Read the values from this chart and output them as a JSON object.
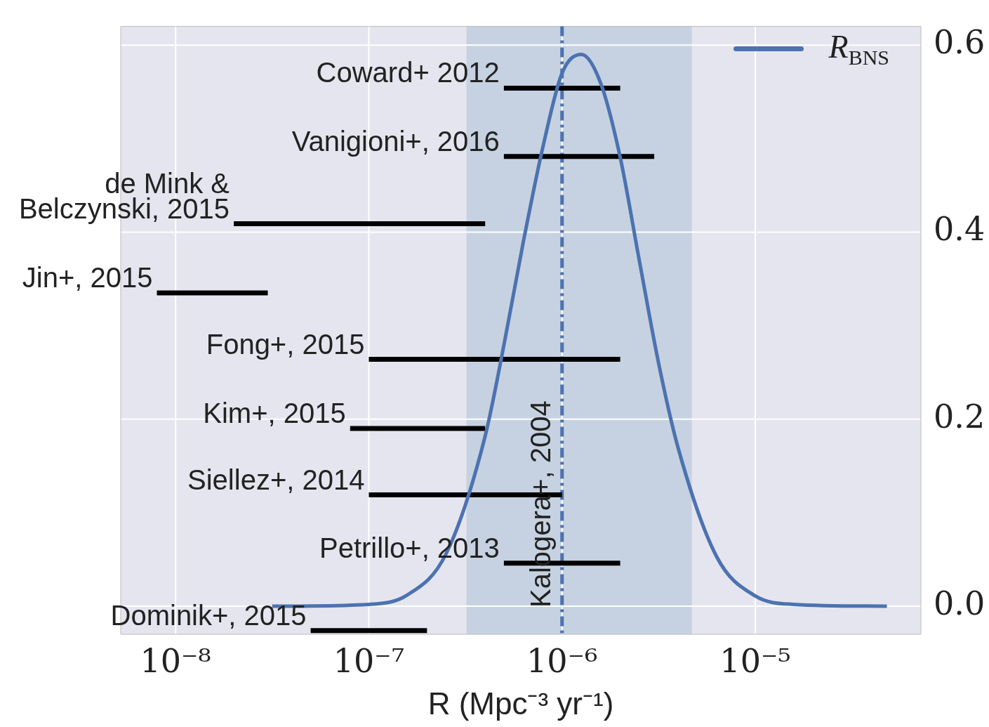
{
  "chart_data": {
    "type": "line",
    "xlabel": "R (Mpc⁻³ yr⁻¹)",
    "log": "x",
    "xlim": [
      5.2e-09,
      7.2e-05
    ],
    "xticks": [
      {
        "value": 1e-08,
        "label": "10⁻⁸"
      },
      {
        "value": 1e-07,
        "label": "10⁻⁷"
      },
      {
        "value": 1e-06,
        "label": "10⁻⁶"
      },
      {
        "value": 1e-05,
        "label": "10⁻⁵"
      }
    ],
    "ylim": [
      -0.03,
      0.62
    ],
    "yticks": [
      {
        "value": 0,
        "label": "0.0"
      },
      {
        "value": 0.2,
        "label": "0.2"
      },
      {
        "value": 0.4,
        "label": "0.4"
      },
      {
        "value": 0.6,
        "label": "0.6"
      }
    ],
    "grid": true,
    "legend": "top right",
    "series": [
      {
        "name": "R$_{BNS}$",
        "color": "#4c72b0",
        "x": [
          3.16e-08,
          1e-07,
          1.58e-07,
          2.51e-07,
          3.98e-07,
          5.01e-07,
          6.31e-07,
          7.94e-07,
          1e-06,
          1.26e-06,
          1.58e-06,
          2e-06,
          2.51e-06,
          3.16e-06,
          3.98e-06,
          6.31e-06,
          1e-05,
          1.58e-05,
          4.8e-05
        ],
        "values": [
          0,
          0.002,
          0.012,
          0.056,
          0.18,
          0.28,
          0.39,
          0.49,
          0.57,
          0.59,
          0.56,
          0.48,
          0.37,
          0.26,
          0.17,
          0.053,
          0.011,
          0.002,
          0
        ]
      },
      {
        "color": "#000000",
        "x": [
          5e-07,
          2e-06
        ],
        "values": [
          0.554,
          0.554
        ]
      },
      {
        "color": "#000000",
        "x": [
          5e-07,
          3e-06
        ],
        "values": [
          0.481,
          0.481
        ]
      },
      {
        "color": "#000000",
        "x": [
          2e-08,
          4e-07
        ],
        "values": [
          0.409,
          0.409
        ]
      },
      {
        "color": "#000000",
        "x": [
          8e-09,
          3e-08
        ],
        "values": [
          0.335,
          0.335
        ]
      },
      {
        "color": "#000000",
        "x": [
          1e-07,
          2e-06
        ],
        "values": [
          0.264,
          0.264
        ]
      },
      {
        "color": "#000000",
        "x": [
          8e-08,
          4e-07
        ],
        "values": [
          0.19,
          0.19
        ]
      },
      {
        "color": "#000000",
        "x": [
          1e-07,
          1e-06
        ],
        "values": [
          0.119,
          0.119
        ]
      },
      {
        "color": "#000000",
        "x": [
          5e-07,
          2e-06
        ],
        "values": [
          0.046,
          0.046
        ]
      },
      {
        "color": "#000000",
        "x": [
          5e-08,
          2e-07
        ],
        "values": [
          -0.026,
          -0.026
        ]
      }
    ],
    "annotations": [
      {
        "text": "Coward+ 2012",
        "x": 5e-07,
        "y": 0.554
      },
      {
        "text": "Vanigioni+, 2016",
        "x": 5e-07,
        "y": 0.481
      },
      {
        "text": "de Mink & Belczynski, 2015",
        "x": 2e-08,
        "y": 0.409
      },
      {
        "text": "Jin+, 2015",
        "x": 8e-09,
        "y": 0.335
      },
      {
        "text": "Fong+, 2015",
        "x": 1e-07,
        "y": 0.264
      },
      {
        "text": "Kim+, 2015",
        "x": 8e-08,
        "y": 0.19
      },
      {
        "text": "Siellez+, 2014",
        "x": 1e-07,
        "y": 0.119
      },
      {
        "text": "Petrillo+, 2013",
        "x": 5e-07,
        "y": 0.046
      },
      {
        "text": "Dominik+, 2015",
        "x": 5e-08,
        "y": -0.026
      }
    ],
    "ref_lines": [
      {
        "axis": "x",
        "value": 1e-06,
        "label": "Kalogera+, 2004",
        "color": "#4c72b0",
        "line_style": "dashed"
      }
    ],
    "bands": [
      {
        "axis": "x",
        "from": 3.2e-07,
        "to": 4.7e-06,
        "color": "#c6d2e1"
      }
    ]
  }
}
